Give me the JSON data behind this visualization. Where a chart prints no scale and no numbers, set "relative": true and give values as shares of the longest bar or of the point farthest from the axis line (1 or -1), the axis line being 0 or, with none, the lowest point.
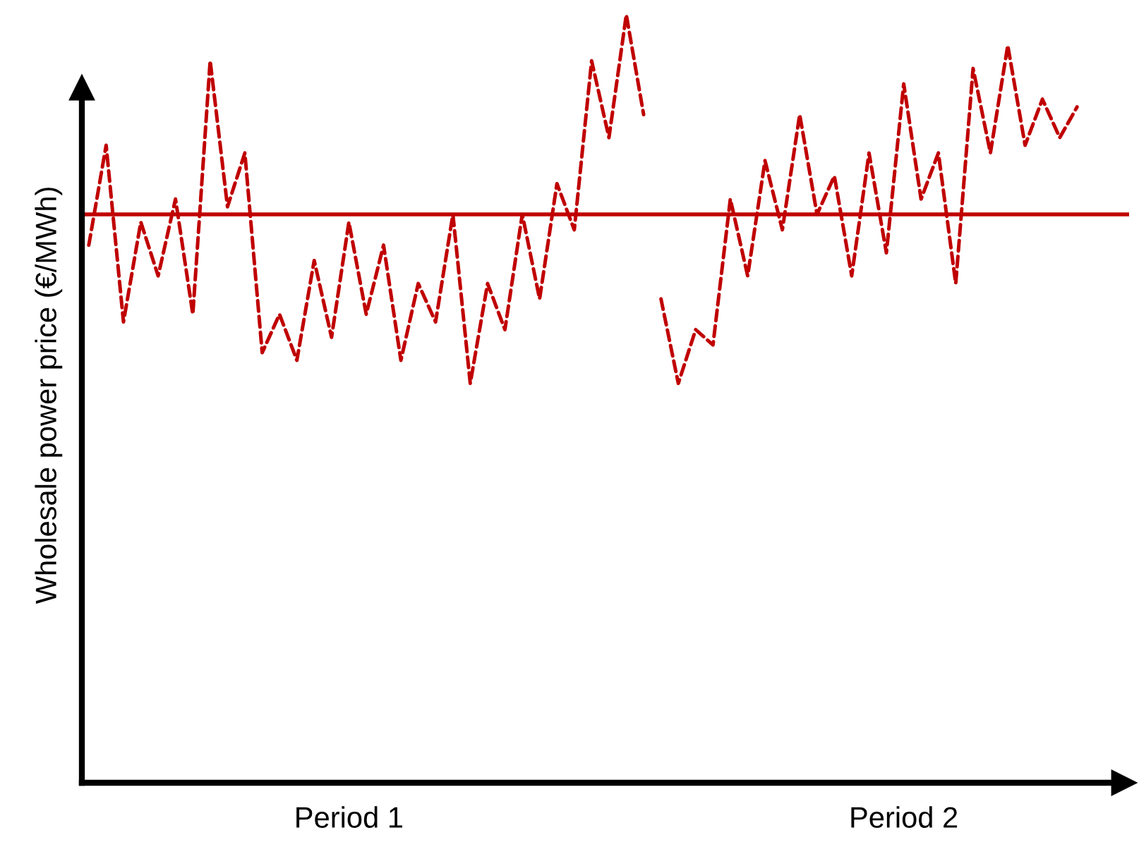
{
  "chart_data": {
    "type": "line",
    "relative": true,
    "ylabel": "Wholesale power price (€/MWh)",
    "categories": [
      null,
      null,
      null,
      null,
      null,
      null,
      null,
      null,
      null,
      null,
      null,
      null,
      null,
      null,
      null,
      "Period 1",
      null,
      null,
      null,
      null,
      null,
      null,
      null,
      null,
      null,
      null,
      null,
      null,
      null,
      null,
      null,
      null,
      null,
      null,
      null,
      null,
      null,
      null,
      null,
      null,
      null,
      null,
      null,
      null,
      null,
      null,
      null,
      "Period 2",
      null,
      null,
      null,
      null,
      null,
      null,
      null,
      null,
      null,
      null
    ],
    "tick_labels": "x",
    "grid": false,
    "legend": false,
    "marker": "none",
    "line_style": "dashed",
    "ref_lines": [
      {
        "axis": "y",
        "value": 0.74,
        "color": "#c00000",
        "line_style": "solid"
      }
    ],
    "series": [
      {
        "color": "#c00000",
        "values": [
          0.7,
          0.83,
          0.6,
          0.73,
          0.66,
          0.76,
          0.61,
          0.94,
          0.75,
          0.82,
          0.56,
          0.61,
          0.55,
          0.68,
          0.58,
          0.73,
          0.61,
          0.7,
          0.55,
          0.65,
          0.6,
          0.74,
          0.52,
          0.65,
          0.59,
          0.74,
          0.63,
          0.78,
          0.72,
          0.94,
          0.84,
          1.0,
          0.87,
          null,
          null,
          null,
          null,
          null,
          null,
          null,
          null,
          null,
          null,
          null,
          null,
          null,
          null,
          null,
          null,
          null,
          null,
          null,
          null,
          null,
          null,
          null,
          null,
          null
        ]
      },
      {
        "color": "#c00000",
        "values": [
          null,
          null,
          null,
          null,
          null,
          null,
          null,
          null,
          null,
          null,
          null,
          null,
          null,
          null,
          null,
          null,
          null,
          null,
          null,
          null,
          null,
          null,
          null,
          null,
          null,
          null,
          null,
          null,
          null,
          null,
          null,
          null,
          null,
          0.63,
          0.52,
          0.59,
          0.57,
          0.76,
          0.66,
          0.81,
          0.72,
          0.87,
          0.74,
          0.79,
          0.66,
          0.82,
          0.69,
          0.91,
          0.76,
          0.82,
          0.65,
          0.93,
          0.82,
          0.96,
          0.83,
          0.89,
          0.84,
          0.88
        ]
      }
    ]
  }
}
